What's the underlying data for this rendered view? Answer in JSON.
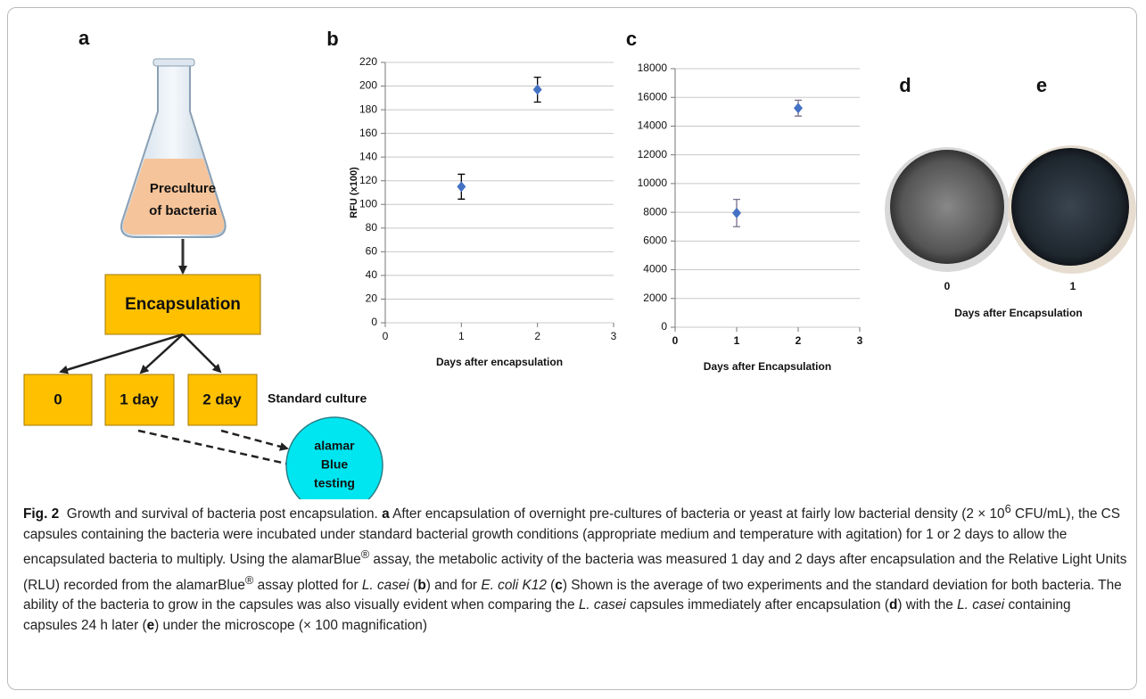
{
  "chart_data": [
    {
      "type": "scatter",
      "panel_label": "b",
      "y_label": "RFU (x100)",
      "x_label": "Days after encapsulation",
      "x": [
        1,
        2
      ],
      "xlim": [
        0,
        3
      ],
      "xticks": [
        0,
        1,
        2,
        3
      ],
      "ylim": [
        0,
        220
      ],
      "yticks": [
        0,
        20,
        40,
        60,
        80,
        100,
        120,
        140,
        160,
        180,
        200,
        220
      ],
      "grid": true,
      "series": [
        {
          "color": "#4472c4",
          "error_color": "#000000",
          "values": [
            115,
            197
          ],
          "errors": [
            10.5,
            10.5
          ]
        }
      ]
    },
    {
      "type": "scatter",
      "panel_label": "c",
      "x_label": "Days after Encapsulation",
      "x": [
        1,
        2
      ],
      "xlim": [
        0,
        3
      ],
      "xticks": [
        0,
        1,
        2,
        3
      ],
      "ylim": [
        0,
        18000
      ],
      "yticks": [
        0,
        2000,
        4000,
        6000,
        8000,
        10000,
        12000,
        14000,
        16000,
        18000
      ],
      "grid": true,
      "series": [
        {
          "color": "#4472c4",
          "error_color": "#7a6e8a",
          "values": [
            7950,
            15250
          ],
          "errors": [
            950,
            550
          ]
        }
      ]
    }
  ],
  "diagram": {
    "panel_label": "a",
    "flask_label": [
      "Preculture",
      "of bacteria"
    ],
    "process": "Encapsulation",
    "time_points": [
      "0",
      "1 day",
      "2 day"
    ],
    "time_points_label": "Standard culture",
    "assay": [
      "alamar",
      "Blue",
      "testing"
    ]
  },
  "images": {
    "panels": [
      {
        "label": "d",
        "x_label": "0"
      },
      {
        "label": "e",
        "x_label": "1"
      }
    ],
    "x_axis_label": "Days after Encapsulation"
  },
  "caption": [
    {
      "text": "Fig. 2",
      "style": "bold"
    },
    {
      "text": "  Growth and survival of bacteria post encapsulation. "
    },
    {
      "text": "a",
      "style": "bold"
    },
    {
      "text": " After encapsulation of overnight pre-cultures of bacteria or yeast at fairly low bacterial density (2 × 10"
    },
    {
      "text": "6",
      "style": "sup"
    },
    {
      "text": " CFU/mL), the CS capsules containing the bacteria were incubated under standard bacterial growth conditions (appropriate medium and temperature with agitation) for 1 or 2 days to allow the encapsulated bacteria to multiply. Using the alamarBlue"
    },
    {
      "text": "®",
      "style": "sup"
    },
    {
      "text": " assay, the metabolic activity of the bacteria was measured 1 day and 2 days after encapsulation and the Relative Light Units (RLU) recorded from the alamarBlue"
    },
    {
      "text": "®",
      "style": "sup"
    },
    {
      "text": " assay plotted for "
    },
    {
      "text": "L. casei",
      "style": "italic"
    },
    {
      "text": " ("
    },
    {
      "text": "b",
      "style": "bold"
    },
    {
      "text": ") and for "
    },
    {
      "text": "E. coli K12",
      "style": "italic"
    },
    {
      "text": " ("
    },
    {
      "text": "c",
      "style": "bold"
    },
    {
      "text": ") Shown is the average of two experiments and the standard deviation for both bacteria. The ability of the bacteria to grow in the capsules was also visually evident when comparing the "
    },
    {
      "text": "L. casei",
      "style": "italic"
    },
    {
      "text": " capsules immediately after encapsulation ("
    },
    {
      "text": "d",
      "style": "bold"
    },
    {
      "text": ") with the "
    },
    {
      "text": "L. casei",
      "style": "italic"
    },
    {
      "text": " containing capsules 24 h later ("
    },
    {
      "text": "e",
      "style": "bold"
    },
    {
      "text": ") under the microscope (× 100 magnification)"
    }
  ]
}
